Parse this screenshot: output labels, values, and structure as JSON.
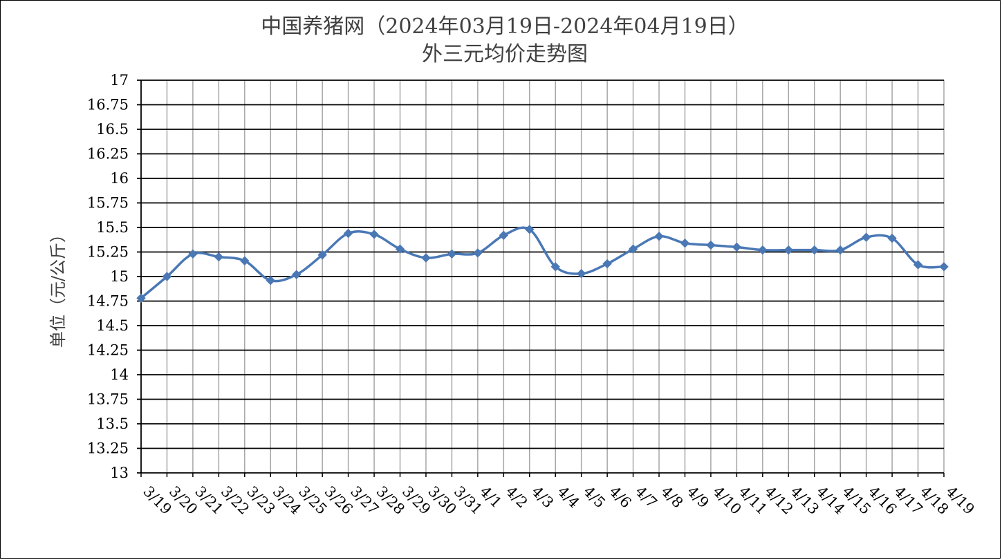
{
  "chart_data": {
    "type": "line",
    "title": "中国养猪网（2024年03月19日-2024年04月19日）",
    "subtitle": "外三元均价走势图",
    "ylabel": "单位（元/公斤）",
    "xlabel": "",
    "ylim": [
      13,
      17
    ],
    "yticks": [
      "13",
      "13.25",
      "13.5",
      "13.75",
      "14",
      "14.25",
      "14.5",
      "14.75",
      "15",
      "15.25",
      "15.5",
      "15.75",
      "16",
      "16.25",
      "16.5",
      "16.75",
      "17"
    ],
    "grid": true,
    "legend": "none",
    "categories": [
      "3/19",
      "3/20",
      "3/21",
      "3/22",
      "3/23",
      "3/24",
      "3/25",
      "3/26",
      "3/27",
      "3/28",
      "3/29",
      "3/30",
      "3/31",
      "4/1",
      "4/2",
      "4/3",
      "4/4",
      "4/5",
      "4/6",
      "4/7",
      "4/8",
      "4/9",
      "4/10",
      "4/11",
      "4/12",
      "4/13",
      "4/14",
      "4/15",
      "4/16",
      "4/17",
      "4/18",
      "4/19"
    ],
    "series": [
      {
        "name": "",
        "color": "#4a78b5",
        "values": [
          14.78,
          15.0,
          15.23,
          15.2,
          15.16,
          14.96,
          15.02,
          15.22,
          15.44,
          15.43,
          15.28,
          15.19,
          15.23,
          15.24,
          15.42,
          15.48,
          15.1,
          15.03,
          15.13,
          15.28,
          15.41,
          15.34,
          15.32,
          15.3,
          15.27,
          15.27,
          15.27,
          15.27,
          15.4,
          15.39,
          15.12,
          15.1
        ]
      }
    ]
  }
}
